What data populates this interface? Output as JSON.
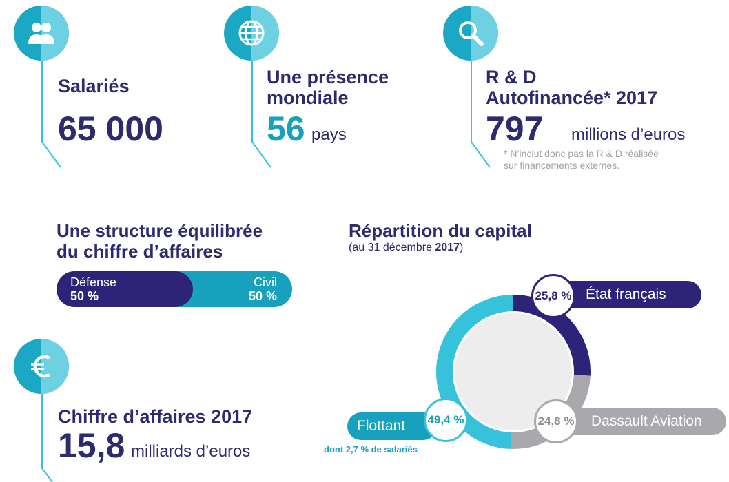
{
  "kpis": {
    "salaries": {
      "label": "Salariés",
      "value": "65 000",
      "icon": "people-icon"
    },
    "presence": {
      "label_line1": "Une présence",
      "label_line2": "mondiale",
      "value": "56",
      "unit": "pays",
      "icon": "globe-icon"
    },
    "rd": {
      "label_line1": "R & D",
      "label_line2": "Autofinancée* 2017",
      "value": "797",
      "unit": "millions d’euros",
      "note_line1": "* N’inclut donc pas la R & D réalisée",
      "note_line2": "sur financements externes.",
      "icon": "magnifier-icon"
    },
    "revenue": {
      "label": "Chiffre d’affaires 2017",
      "value": "15,8",
      "unit": "milliards d’euros",
      "icon": "euro-icon"
    }
  },
  "structure": {
    "title_line1": "Une structure équilibrée",
    "title_line2": "du chiffre d’affaires",
    "defense_label": "Défense",
    "defense_value": "50 %",
    "civil_label": "Civil",
    "civil_value": "50 %",
    "defense_share": 0.5
  },
  "capital": {
    "title": "Répartition du capital",
    "subtitle_prefix": "(au 31 décembre ",
    "subtitle_year": "2017",
    "subtitle_suffix": ")",
    "floating_note": "dont 2,7 % de salariés"
  },
  "colors": {
    "navy": "#2d2479",
    "teal": "#17a1bd",
    "light_teal": "#37c2dc",
    "grey": "#a9a9ad",
    "title": "#2d2a6e"
  },
  "chart_data": {
    "type": "pie",
    "title": "Répartition du capital",
    "slices": [
      {
        "name": "État français",
        "value": 25.8,
        "label": "25,8 %",
        "color": "#2d2479"
      },
      {
        "name": "Dassault Aviation",
        "value": 24.8,
        "label": "24,8 %",
        "color": "#a9a9ad"
      },
      {
        "name": "Flottant",
        "value": 49.4,
        "label": "49,4 %",
        "color": "#37c2dc"
      }
    ]
  }
}
